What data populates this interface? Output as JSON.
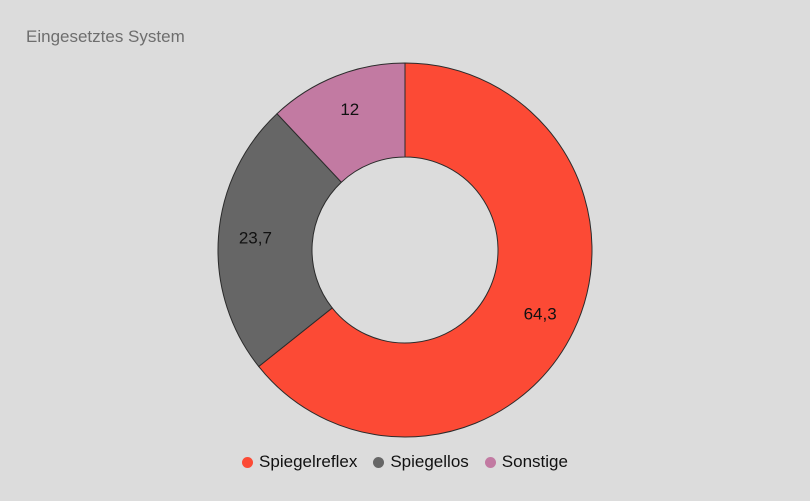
{
  "chart_data": {
    "type": "pie",
    "variant": "donut",
    "title": "Eingesetztes System",
    "categories": [
      "Spiegelreflex",
      "Spiegellos",
      "Sonstige"
    ],
    "values": [
      64.3,
      23.7,
      12
    ],
    "value_labels": [
      "64,3",
      "23,7",
      "12"
    ],
    "colors": [
      "#fc4a35",
      "#666666",
      "#c27aa2"
    ],
    "legend_position": "bottom"
  }
}
